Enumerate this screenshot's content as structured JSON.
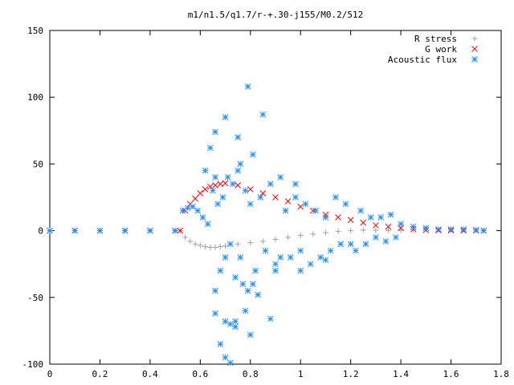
{
  "chart_data": {
    "type": "scatter",
    "title": "m1/n1.5/q1.7/r-+.30-j155/M0.2/512",
    "xlabel": "",
    "ylabel": "",
    "xlim": [
      0,
      1.8
    ],
    "ylim": [
      -100,
      150
    ],
    "x_ticks": [
      "0",
      "0.2",
      "0.4",
      "0.6",
      "0.8",
      "1",
      "1.2",
      "1.4",
      "1.6",
      "1.8"
    ],
    "y_ticks": [
      "-100",
      "-50",
      "0",
      "50",
      "100",
      "150"
    ],
    "grid": false,
    "legend": "top-right",
    "series": [
      {
        "name": "R stress",
        "marker": "plus",
        "color": "#a0a0a0",
        "x": [
          0.0,
          0.1,
          0.2,
          0.3,
          0.4,
          0.5,
          0.52,
          0.54,
          0.56,
          0.58,
          0.6,
          0.62,
          0.64,
          0.66,
          0.68,
          0.7,
          0.75,
          0.8,
          0.85,
          0.9,
          0.95,
          1.0,
          1.05,
          1.1,
          1.15,
          1.2,
          1.25,
          1.3,
          1.35,
          1.4,
          1.45,
          1.5,
          1.55,
          1.6,
          1.65,
          1.7,
          1.73
        ],
        "y": [
          0,
          0,
          0,
          0,
          0,
          0,
          0,
          -5,
          -8,
          -10,
          -11,
          -12,
          -12.5,
          -12.5,
          -12,
          -11.5,
          -10,
          -9,
          -8,
          -6.5,
          -5,
          -3.5,
          -2.5,
          -1.5,
          -0.5,
          0,
          0.5,
          0.3,
          0.2,
          0.2,
          0.5,
          1,
          1,
          0.8,
          0.5,
          0.3,
          0.2
        ]
      },
      {
        "name": "G work",
        "marker": "cross",
        "color": "#ff0000",
        "x": [
          0.0,
          0.1,
          0.2,
          0.3,
          0.4,
          0.5,
          0.52,
          0.54,
          0.56,
          0.58,
          0.6,
          0.62,
          0.64,
          0.66,
          0.68,
          0.7,
          0.75,
          0.8,
          0.85,
          0.9,
          0.95,
          1.0,
          1.05,
          1.1,
          1.15,
          1.2,
          1.25,
          1.3,
          1.35,
          1.4,
          1.45,
          1.5,
          1.55,
          1.6,
          1.65,
          1.7,
          1.73
        ],
        "y": [
          0,
          0,
          0,
          0,
          0,
          0,
          0,
          15,
          20,
          24,
          28,
          31,
          33,
          34,
          35,
          35.5,
          34,
          31,
          28,
          25,
          22,
          18,
          15,
          12,
          10,
          8,
          6,
          4,
          3,
          2,
          1,
          0.5,
          0.3,
          0.2,
          0.1,
          0.1,
          0
        ]
      },
      {
        "name": "Acoustic flux",
        "marker": "star",
        "color": "#1e90ff",
        "x": [
          0.0,
          0.1,
          0.2,
          0.3,
          0.4,
          0.5,
          0.53,
          0.55,
          0.57,
          0.59,
          0.61,
          0.63,
          0.65,
          0.66,
          0.67,
          0.68,
          0.69,
          0.7,
          0.71,
          0.72,
          0.73,
          0.74,
          0.75,
          0.76,
          0.77,
          0.78,
          0.79,
          0.8,
          0.81,
          0.82,
          0.84,
          0.86,
          0.88,
          0.9,
          0.92,
          0.94,
          0.96,
          0.98,
          1.0,
          1.02,
          1.04,
          1.06,
          1.08,
          1.1,
          1.12,
          1.14,
          1.16,
          1.18,
          1.2,
          1.22,
          1.24,
          1.26,
          1.28,
          1.3,
          1.32,
          1.34,
          1.36,
          1.38,
          1.4,
          1.45,
          1.5,
          1.55,
          1.6,
          1.65,
          1.7,
          1.73,
          0.66,
          0.7,
          0.72,
          0.74,
          0.79,
          0.81,
          0.85,
          0.66,
          0.7,
          0.74,
          0.8,
          0.88,
          0.64,
          0.68,
          0.75,
          0.9,
          1.0,
          1.1,
          0.62,
          0.66,
          0.76,
          0.83,
          0.92,
          0.98,
          0.7,
          0.72,
          0.78
        ],
        "y": [
          0,
          0,
          0,
          0,
          0,
          0,
          15,
          17,
          18,
          15,
          10,
          5,
          30,
          40,
          20,
          -30,
          25,
          -20,
          40,
          -10,
          35,
          -35,
          45,
          -20,
          -40,
          30,
          -45,
          20,
          -40,
          -30,
          25,
          -15,
          35,
          -30,
          -20,
          15,
          -20,
          25,
          -15,
          20,
          -25,
          15,
          -20,
          10,
          -15,
          25,
          -10,
          20,
          -10,
          -15,
          15,
          -10,
          10,
          -5,
          10,
          -8,
          12,
          -5,
          5,
          3,
          2,
          1,
          1,
          1,
          0.5,
          0,
          74,
          85,
          -70,
          -68,
          108,
          57,
          87,
          -62,
          -68,
          -72,
          -78,
          -66,
          62,
          -85,
          70,
          -25,
          -30,
          -22,
          45,
          -45,
          50,
          -48,
          40,
          35,
          -95,
          -99,
          -60
        ]
      }
    ]
  }
}
